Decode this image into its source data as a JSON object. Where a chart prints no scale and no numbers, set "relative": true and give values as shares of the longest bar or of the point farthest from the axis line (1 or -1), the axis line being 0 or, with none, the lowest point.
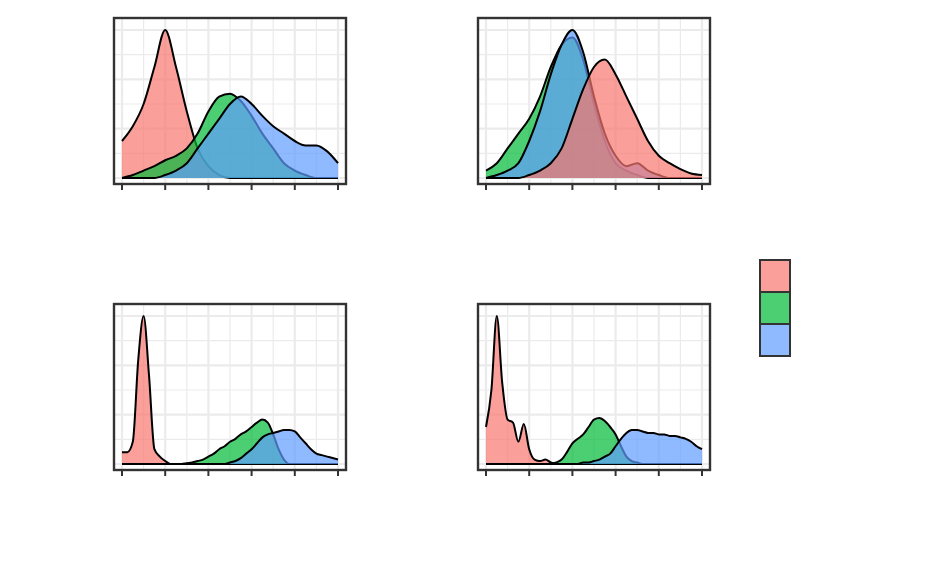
{
  "chart_data": [
    {
      "type": "area",
      "relative": true,
      "grid": true,
      "tick_labels": false,
      "categories": [
        null,
        null,
        null,
        null,
        null,
        null,
        null,
        null,
        null,
        null,
        null,
        null,
        null,
        null,
        null,
        null,
        null,
        null,
        null,
        null,
        null
      ],
      "series": [
        {
          "color": "#f8766d",
          "values": [
            0.25,
            0.35,
            0.5,
            0.75,
            1.0,
            0.75,
            0.45,
            0.2,
            0.08,
            0.02,
            0,
            0,
            0,
            0,
            0,
            0,
            0,
            0,
            0,
            0,
            0
          ]
        },
        {
          "color": "#00ba38",
          "values": [
            0,
            0.02,
            0.05,
            0.08,
            0.12,
            0.15,
            0.2,
            0.3,
            0.45,
            0.55,
            0.57,
            0.52,
            0.42,
            0.3,
            0.2,
            0.1,
            0.05,
            0.02,
            0,
            0,
            0
          ]
        },
        {
          "color": "#619cff",
          "values": [
            0,
            0,
            0,
            0,
            0.02,
            0.05,
            0.1,
            0.2,
            0.3,
            0.4,
            0.5,
            0.55,
            0.5,
            0.42,
            0.35,
            0.3,
            0.25,
            0.22,
            0.22,
            0.18,
            0.1
          ]
        }
      ]
    },
    {
      "type": "area",
      "relative": true,
      "grid": true,
      "tick_labels": false,
      "categories": [
        null,
        null,
        null,
        null,
        null,
        null,
        null,
        null,
        null,
        null,
        null,
        null,
        null,
        null,
        null,
        null,
        null,
        null,
        null,
        null,
        null
      ],
      "series": [
        {
          "color": "#00ba38",
          "values": [
            0.05,
            0.1,
            0.2,
            0.3,
            0.4,
            0.55,
            0.75,
            0.9,
            0.95,
            0.8,
            0.5,
            0.25,
            0.1,
            0.05,
            0.02,
            0,
            0,
            0,
            0,
            0,
            0
          ]
        },
        {
          "color": "#619cff",
          "values": [
            0,
            0.02,
            0.05,
            0.1,
            0.25,
            0.45,
            0.7,
            0.9,
            1.0,
            0.85,
            0.55,
            0.3,
            0.15,
            0.08,
            0.1,
            0.05,
            0.02,
            0,
            0,
            0,
            0
          ]
        },
        {
          "color": "#f8766d",
          "values": [
            0,
            0,
            0,
            0,
            0.02,
            0.05,
            0.1,
            0.2,
            0.4,
            0.6,
            0.75,
            0.8,
            0.7,
            0.55,
            0.4,
            0.25,
            0.15,
            0.1,
            0.06,
            0.03,
            0.02
          ]
        }
      ]
    },
    {
      "type": "area",
      "relative": true,
      "grid": true,
      "tick_labels": false,
      "categories": [
        null,
        null,
        null,
        null,
        null,
        null,
        null,
        null,
        null,
        null,
        null,
        null,
        null,
        null,
        null,
        null,
        null,
        null,
        null,
        null,
        null,
        null,
        null,
        null,
        null,
        null,
        null,
        null,
        null,
        null,
        null,
        null,
        null,
        null,
        null,
        null,
        null,
        null,
        null,
        null,
        null
      ],
      "series": [
        {
          "color": "#f8766d",
          "values": [
            0.08,
            0.08,
            0.15,
            0.7,
            1.0,
            0.6,
            0.1,
            0.05,
            0.02,
            0,
            0,
            0,
            0,
            0,
            0,
            0,
            0,
            0,
            0,
            0,
            0,
            0,
            0,
            0,
            0,
            0,
            0,
            0,
            0,
            0,
            0,
            0,
            0,
            0,
            0,
            0,
            0,
            0,
            0,
            0,
            0
          ]
        },
        {
          "color": "#00ba38",
          "values": [
            0,
            0,
            0,
            0,
            0,
            0,
            0,
            0,
            0,
            0,
            0,
            0,
            0.005,
            0.01,
            0.02,
            0.03,
            0.05,
            0.07,
            0.1,
            0.12,
            0.15,
            0.17,
            0.2,
            0.22,
            0.25,
            0.28,
            0.3,
            0.28,
            0.2,
            0.1,
            0.03,
            0,
            0,
            0,
            0,
            0,
            0,
            0,
            0,
            0,
            0
          ]
        },
        {
          "color": "#619cff",
          "values": [
            0,
            0,
            0,
            0,
            0,
            0,
            0,
            0,
            0,
            0,
            0,
            0,
            0,
            0,
            0,
            0,
            0,
            0,
            0,
            0,
            0.01,
            0.02,
            0.04,
            0.07,
            0.1,
            0.14,
            0.18,
            0.2,
            0.21,
            0.22,
            0.23,
            0.23,
            0.22,
            0.18,
            0.14,
            0.1,
            0.07,
            0.06,
            0.05,
            0.04,
            0.03
          ]
        }
      ]
    },
    {
      "type": "area",
      "relative": true,
      "grid": true,
      "tick_labels": false,
      "categories": [
        null,
        null,
        null,
        null,
        null,
        null,
        null,
        null,
        null,
        null,
        null,
        null,
        null,
        null,
        null,
        null,
        null,
        null,
        null,
        null,
        null,
        null,
        null,
        null,
        null,
        null,
        null,
        null,
        null,
        null,
        null,
        null,
        null,
        null,
        null,
        null,
        null,
        null,
        null,
        null,
        null
      ],
      "series": [
        {
          "color": "#f8766d",
          "values": [
            0.25,
            0.5,
            1.0,
            0.55,
            0.3,
            0.28,
            0.15,
            0.27,
            0.1,
            0.03,
            0.02,
            0.03,
            0.01,
            0,
            0,
            0,
            0,
            0,
            0,
            0,
            0,
            0,
            0,
            0,
            0,
            0,
            0,
            0,
            0,
            0,
            0,
            0,
            0,
            0,
            0,
            0,
            0,
            0,
            0,
            0,
            0
          ]
        },
        {
          "color": "#00ba38",
          "values": [
            0,
            0,
            0,
            0,
            0,
            0,
            0,
            0,
            0,
            0,
            0,
            0,
            0,
            0.01,
            0.03,
            0.08,
            0.14,
            0.17,
            0.2,
            0.25,
            0.3,
            0.31,
            0.29,
            0.25,
            0.2,
            0.12,
            0.05,
            0.02,
            0.01,
            0,
            0,
            0,
            0,
            0,
            0,
            0,
            0,
            0,
            0,
            0,
            0
          ]
        },
        {
          "color": "#619cff",
          "values": [
            0,
            0,
            0,
            0,
            0,
            0,
            0,
            0,
            0,
            0,
            0,
            0,
            0,
            0,
            0,
            0,
            0,
            0,
            0.01,
            0.01,
            0.02,
            0.03,
            0.05,
            0.07,
            0.12,
            0.17,
            0.21,
            0.23,
            0.23,
            0.22,
            0.21,
            0.21,
            0.2,
            0.2,
            0.19,
            0.19,
            0.18,
            0.17,
            0.15,
            0.12,
            0.1
          ]
        }
      ]
    }
  ]
}
